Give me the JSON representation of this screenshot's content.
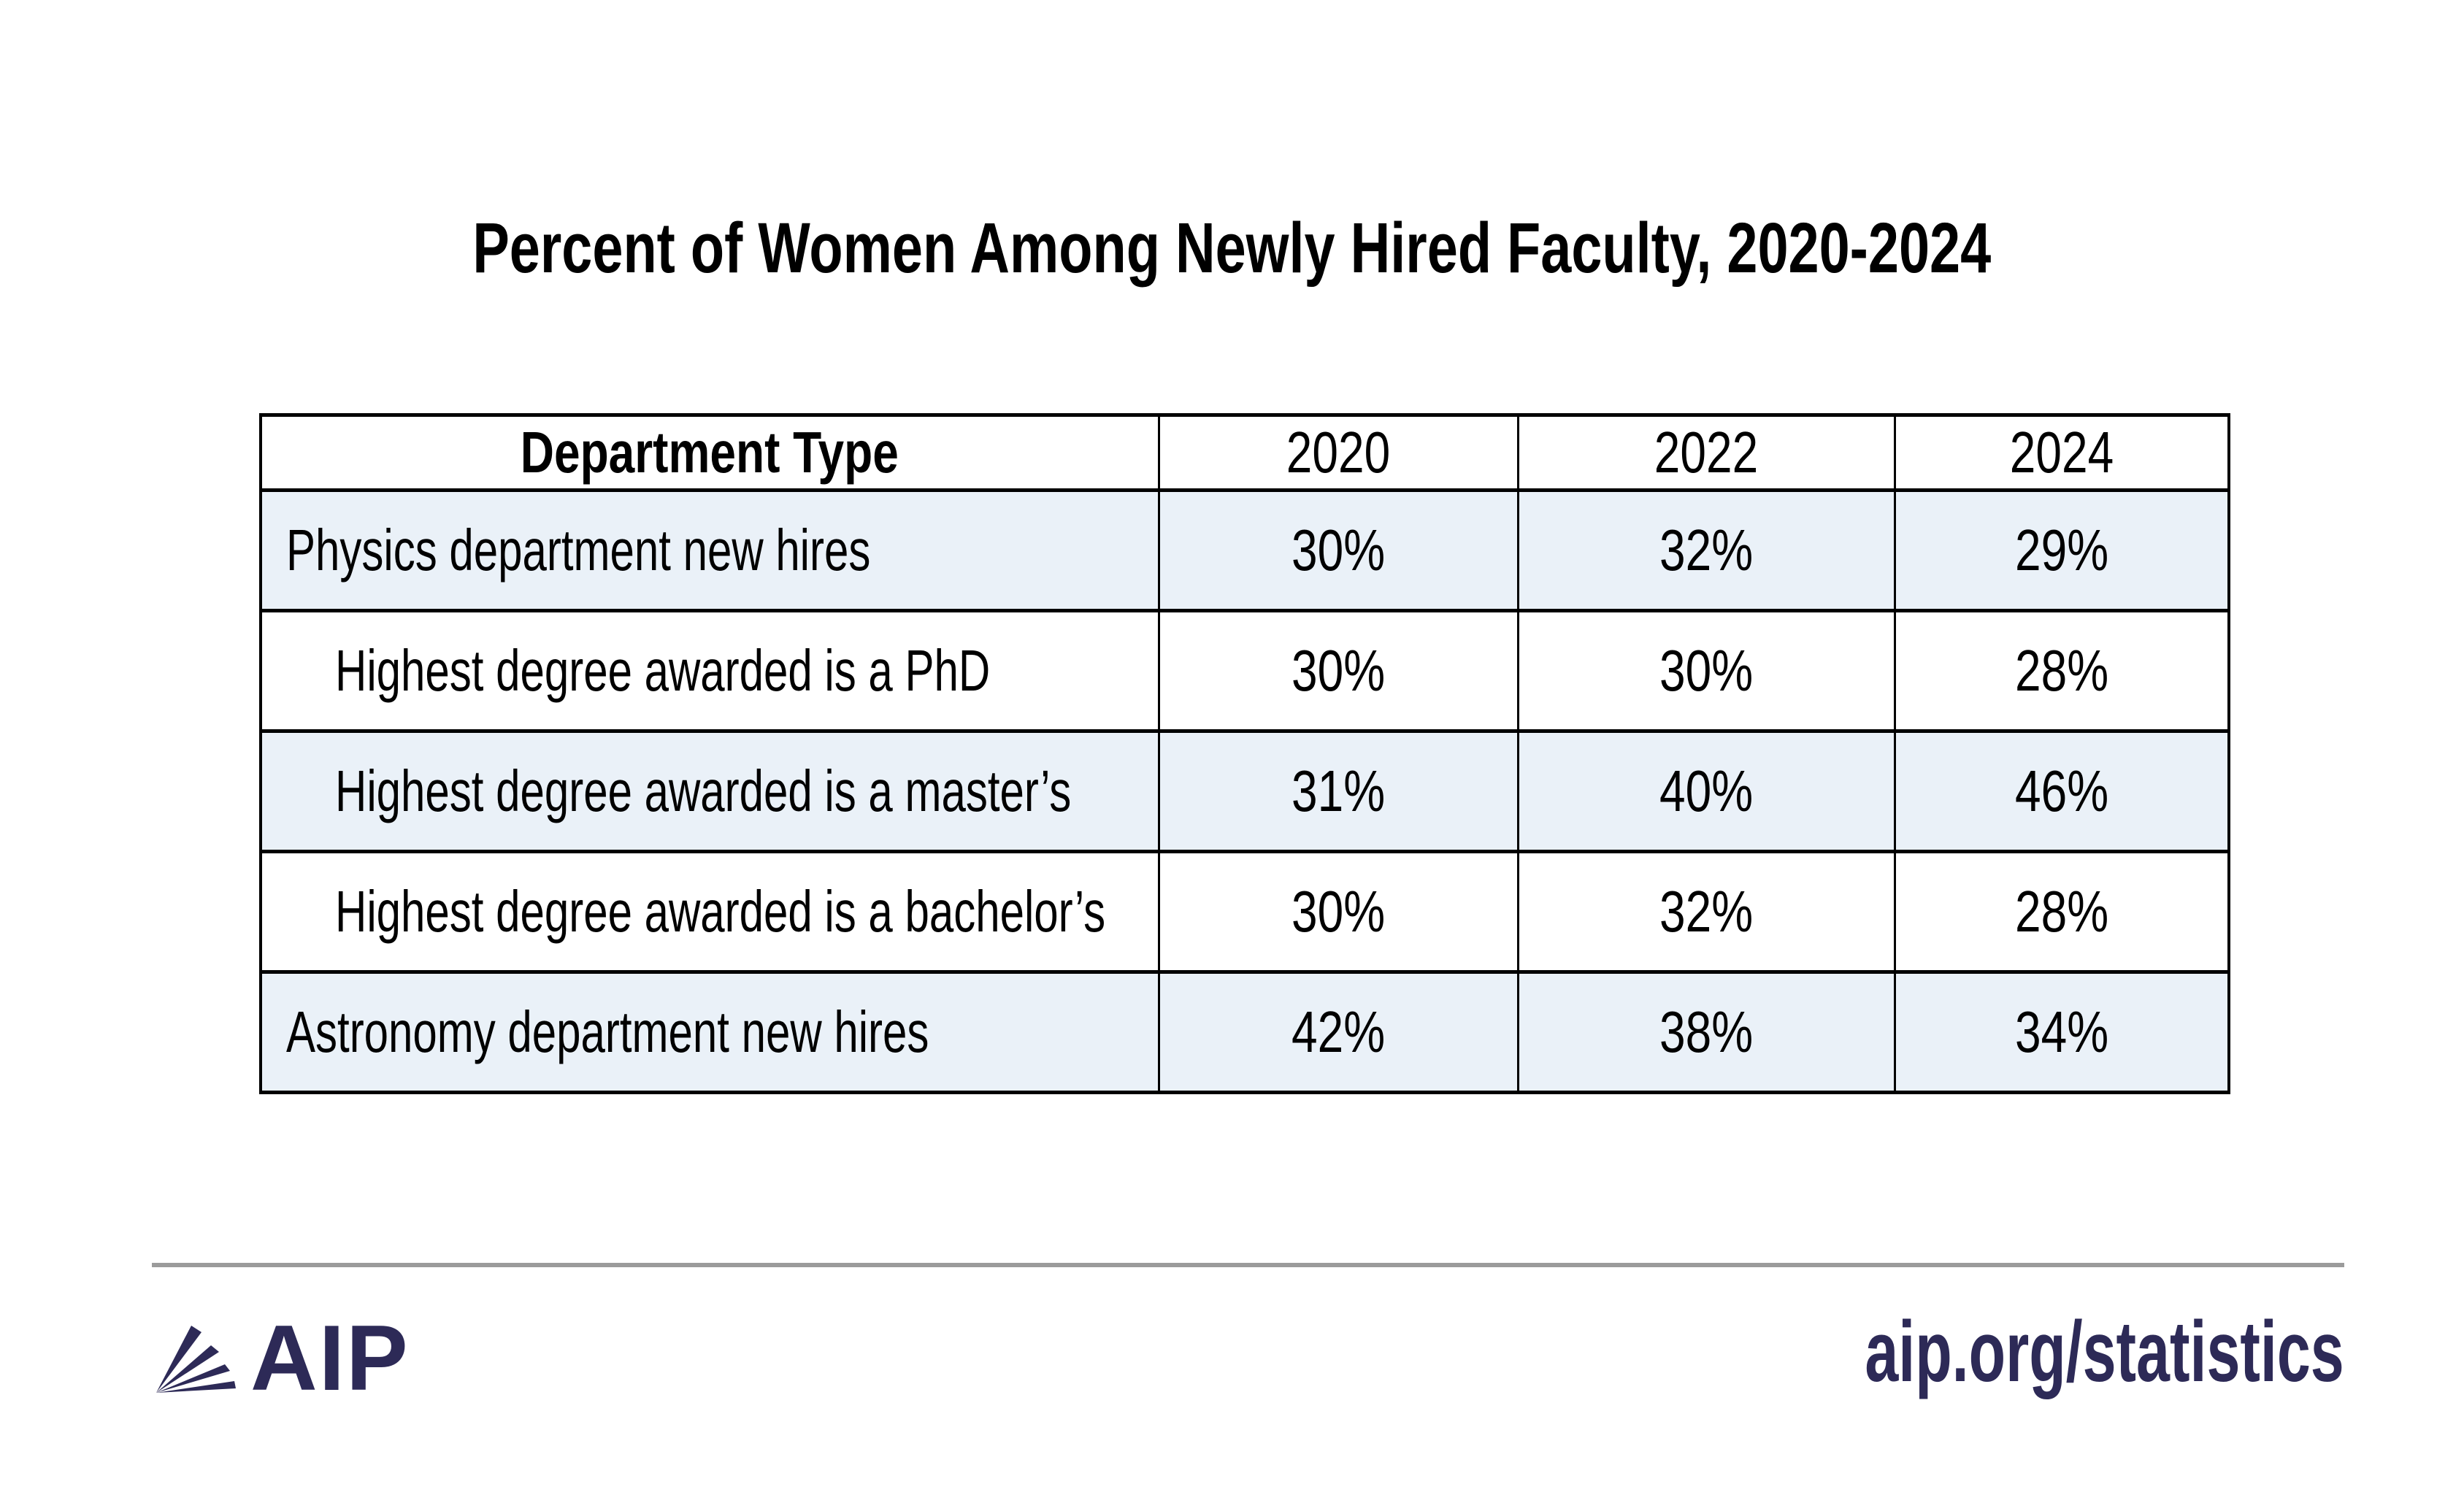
{
  "title": "Percent of Women Among Newly Hired Faculty, 2020-2024",
  "table": {
    "columns": [
      "Department Type",
      "2020",
      "2022",
      "2024"
    ],
    "rows": [
      {
        "label": "Physics department new hires",
        "indent": false,
        "values": [
          "30%",
          "32%",
          "29%"
        ]
      },
      {
        "label": "Highest degree awarded is a PhD",
        "indent": true,
        "values": [
          "30%",
          "30%",
          "28%"
        ]
      },
      {
        "label": "Highest degree awarded is a master’s",
        "indent": true,
        "values": [
          "31%",
          "40%",
          "46%"
        ]
      },
      {
        "label": "Highest degree awarded is a bachelor’s",
        "indent": true,
        "values": [
          "30%",
          "32%",
          "28%"
        ]
      },
      {
        "label": "Astronomy department new hires",
        "indent": false,
        "values": [
          "42%",
          "38%",
          "34%"
        ]
      }
    ]
  },
  "footer": {
    "logo_text": "AIP",
    "url": "aip.org/statistics"
  },
  "colors": {
    "row_stripe": "#eaf1f8",
    "navy": "#2d2a57",
    "divider_gray": "#9b9b9b",
    "border_black": "#000000"
  },
  "icons": {
    "logo_mark": "aip-fan-logo"
  },
  "chart_data": {
    "type": "table",
    "title": "Percent of Women Among Newly Hired Faculty, 2020-2024",
    "categories": [
      "2020",
      "2022",
      "2024"
    ],
    "series": [
      {
        "name": "Physics department new hires",
        "values": [
          30,
          32,
          29
        ]
      },
      {
        "name": "Highest degree awarded is a PhD",
        "values": [
          30,
          30,
          28
        ]
      },
      {
        "name": "Highest degree awarded is a master’s",
        "values": [
          31,
          40,
          46
        ]
      },
      {
        "name": "Highest degree awarded is a bachelor’s",
        "values": [
          30,
          32,
          28
        ]
      },
      {
        "name": "Astronomy department new hires",
        "values": [
          42,
          38,
          34
        ]
      }
    ],
    "unit": "%",
    "row_header_label": "Department Type",
    "source_label": "aip.org/statistics"
  }
}
